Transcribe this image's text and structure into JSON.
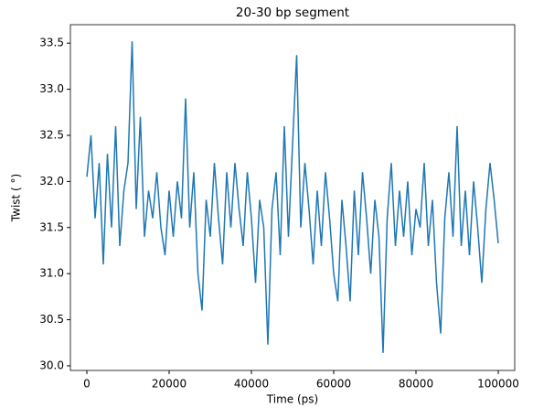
{
  "chart_data": {
    "type": "line",
    "title": "20-30 bp segment",
    "xlabel": "Time (ps)",
    "ylabel": "Twist ( °)",
    "x": [
      0,
      1000,
      2000,
      3000,
      4000,
      5000,
      6000,
      7000,
      8000,
      9000,
      10000,
      11000,
      12000,
      13000,
      14000,
      15000,
      16000,
      17000,
      18000,
      19000,
      20000,
      21000,
      22000,
      23000,
      24000,
      25000,
      26000,
      27000,
      28000,
      29000,
      30000,
      31000,
      32000,
      33000,
      34000,
      35000,
      36000,
      37000,
      38000,
      39000,
      40000,
      41000,
      42000,
      43000,
      44000,
      45000,
      46000,
      47000,
      48000,
      49000,
      50000,
      51000,
      52000,
      53000,
      54000,
      55000,
      56000,
      57000,
      58000,
      59000,
      60000,
      61000,
      62000,
      63000,
      64000,
      65000,
      66000,
      67000,
      68000,
      69000,
      70000,
      71000,
      72000,
      73000,
      74000,
      75000,
      76000,
      77000,
      78000,
      79000,
      80000,
      81000,
      82000,
      83000,
      84000,
      85000,
      86000,
      87000,
      88000,
      89000,
      90000,
      91000,
      92000,
      93000,
      94000,
      95000,
      96000,
      97000,
      98000,
      99000,
      100000
    ],
    "series": [
      {
        "name": "twist",
        "color": "#1f77b4",
        "values": [
          32.05,
          32.5,
          31.6,
          32.2,
          31.1,
          32.3,
          31.5,
          32.6,
          31.3,
          31.9,
          32.2,
          33.52,
          31.7,
          32.7,
          31.4,
          31.9,
          31.6,
          32.1,
          31.5,
          31.2,
          31.9,
          31.4,
          32.0,
          31.6,
          32.9,
          31.5,
          32.1,
          31.0,
          30.6,
          31.8,
          31.4,
          32.2,
          31.6,
          31.1,
          32.1,
          31.5,
          32.2,
          31.7,
          31.3,
          32.1,
          31.6,
          30.9,
          31.8,
          31.5,
          30.23,
          31.7,
          32.1,
          31.2,
          32.6,
          31.4,
          32.4,
          33.37,
          31.5,
          32.2,
          31.7,
          31.1,
          31.9,
          31.3,
          32.1,
          31.6,
          31.0,
          30.7,
          31.8,
          31.3,
          30.7,
          31.9,
          31.2,
          32.1,
          31.6,
          31.0,
          31.8,
          31.4,
          30.14,
          31.6,
          32.2,
          31.3,
          31.9,
          31.4,
          32.0,
          31.2,
          31.7,
          31.5,
          32.2,
          31.3,
          31.8,
          30.9,
          30.35,
          31.6,
          32.1,
          31.4,
          32.6,
          31.3,
          31.9,
          31.2,
          32.0,
          31.5,
          30.9,
          31.7,
          32.2,
          31.8,
          31.33
        ]
      }
    ],
    "xlim": [
      -4000,
      104000
    ],
    "ylim": [
      29.95,
      33.7
    ],
    "xticks": [
      0,
      20000,
      40000,
      60000,
      80000,
      100000
    ],
    "yticks": [
      {
        "value": 30,
        "label": "30.0"
      },
      30.5,
      {
        "value": 31,
        "label": "31.0"
      },
      31.5,
      {
        "value": 32,
        "label": "32.0"
      },
      32.5,
      {
        "value": 33,
        "label": "33.0"
      },
      33.5
    ]
  }
}
